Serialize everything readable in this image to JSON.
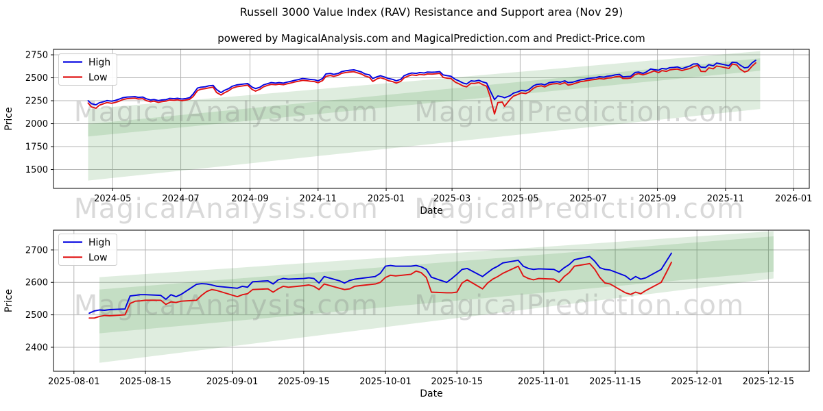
{
  "figure": {
    "title": "Russell 3000 Value Index (RAV) Resistance and Support area (Nov 29)",
    "subtitle": "powered by MagicalAnalysis.com and MagicalPrediction.com and Predict-Price.com",
    "watermark_left": "MagicalAnalysis.com",
    "watermark_right": "MagicalPrediction.com",
    "colors": {
      "high_line": "#0000e0",
      "low_line": "#e01111",
      "band_green": "rgba(56,142,56,0.16)",
      "grid": "#b4b4b4",
      "spine": "#000000",
      "watermark": "rgba(128,128,128,0.30)",
      "legend_border": "#cccccc"
    }
  },
  "chart_data": [
    {
      "type": "line",
      "name": "full-history-chart",
      "xlabel": "Date",
      "ylabel": "Price",
      "legend": [
        "High",
        "Low"
      ],
      "legend_position": "upper left",
      "grid": true,
      "x_domain": [
        "2024-03-09",
        "2026-01-15"
      ],
      "y_domain": [
        1295,
        2810
      ],
      "y_ticks": [
        1500,
        1750,
        2000,
        2250,
        2500,
        2750
      ],
      "x_ticks": [
        {
          "date": "2024-05-01",
          "label": "2024-05"
        },
        {
          "date": "2024-07-01",
          "label": "2024-07"
        },
        {
          "date": "2024-09-01",
          "label": "2024-09"
        },
        {
          "date": "2024-11-01",
          "label": "2024-11"
        },
        {
          "date": "2025-01-01",
          "label": "2025-01"
        },
        {
          "date": "2025-03-01",
          "label": "2025-03"
        },
        {
          "date": "2025-05-01",
          "label": "2025-05"
        },
        {
          "date": "2025-07-01",
          "label": "2025-07"
        },
        {
          "date": "2025-09-01",
          "label": "2025-09"
        },
        {
          "date": "2025-11-01",
          "label": "2025-11"
        },
        {
          "date": "2026-01-01",
          "label": "2026-01"
        }
      ],
      "bands": [
        {
          "name": "support-area",
          "x": [
            "2024-04-09",
            "2025-12-02"
          ],
          "y_bottom": [
            1380,
            2160
          ],
          "y_top": [
            1995,
            2712
          ]
        },
        {
          "name": "resistance-area",
          "x": [
            "2024-04-09",
            "2025-12-02"
          ],
          "y_bottom": [
            1860,
            2577
          ],
          "y_top": [
            2160,
            2790
          ]
        }
      ],
      "dates": [
        "2024-04-09",
        "2024-04-12",
        "2024-04-16",
        "2024-04-19",
        "2024-04-23",
        "2024-04-26",
        "2024-04-30",
        "2024-05-03",
        "2024-05-07",
        "2024-05-10",
        "2024-05-14",
        "2024-05-17",
        "2024-05-21",
        "2024-05-24",
        "2024-05-28",
        "2024-05-31",
        "2024-06-04",
        "2024-06-07",
        "2024-06-11",
        "2024-06-14",
        "2024-06-18",
        "2024-06-21",
        "2024-06-25",
        "2024-06-28",
        "2024-07-02",
        "2024-07-05",
        "2024-07-09",
        "2024-07-12",
        "2024-07-16",
        "2024-07-19",
        "2024-07-23",
        "2024-07-26",
        "2024-07-30",
        "2024-08-02",
        "2024-08-06",
        "2024-08-09",
        "2024-08-13",
        "2024-08-16",
        "2024-08-20",
        "2024-08-23",
        "2024-08-27",
        "2024-08-30",
        "2024-09-03",
        "2024-09-06",
        "2024-09-10",
        "2024-09-13",
        "2024-09-17",
        "2024-09-20",
        "2024-09-24",
        "2024-09-27",
        "2024-10-01",
        "2024-10-04",
        "2024-10-08",
        "2024-10-11",
        "2024-10-15",
        "2024-10-18",
        "2024-10-22",
        "2024-10-25",
        "2024-10-29",
        "2024-11-01",
        "2024-11-05",
        "2024-11-08",
        "2024-11-12",
        "2024-11-15",
        "2024-11-19",
        "2024-11-22",
        "2024-11-26",
        "2024-11-29",
        "2024-12-03",
        "2024-12-06",
        "2024-12-10",
        "2024-12-13",
        "2024-12-17",
        "2024-12-20",
        "2024-12-24",
        "2024-12-27",
        "2024-12-31",
        "2025-01-03",
        "2025-01-07",
        "2025-01-10",
        "2025-01-14",
        "2025-01-17",
        "2025-01-21",
        "2025-01-24",
        "2025-01-28",
        "2025-01-31",
        "2025-02-04",
        "2025-02-07",
        "2025-02-11",
        "2025-02-14",
        "2025-02-18",
        "2025-02-21",
        "2025-02-25",
        "2025-02-28",
        "2025-03-04",
        "2025-03-07",
        "2025-03-11",
        "2025-03-14",
        "2025-03-18",
        "2025-03-21",
        "2025-03-25",
        "2025-03-28",
        "2025-04-01",
        "2025-04-04",
        "2025-04-08",
        "2025-04-11",
        "2025-04-15",
        "2025-04-17",
        "2025-04-22",
        "2025-04-25",
        "2025-04-29",
        "2025-05-02",
        "2025-05-06",
        "2025-05-09",
        "2025-05-13",
        "2025-05-16",
        "2025-05-20",
        "2025-05-23",
        "2025-05-27",
        "2025-05-30",
        "2025-06-03",
        "2025-06-06",
        "2025-06-10",
        "2025-06-13",
        "2025-06-17",
        "2025-06-20",
        "2025-06-24",
        "2025-06-27",
        "2025-07-01",
        "2025-07-04",
        "2025-07-08",
        "2025-07-11",
        "2025-07-15",
        "2025-07-18",
        "2025-07-22",
        "2025-07-25",
        "2025-07-29",
        "2025-08-01",
        "2025-08-05",
        "2025-08-08",
        "2025-08-12",
        "2025-08-15",
        "2025-08-19",
        "2025-08-22",
        "2025-08-26",
        "2025-08-29",
        "2025-09-02",
        "2025-09-05",
        "2025-09-09",
        "2025-09-12",
        "2025-09-16",
        "2025-09-19",
        "2025-09-23",
        "2025-09-26",
        "2025-09-30",
        "2025-10-03",
        "2025-10-07",
        "2025-10-10",
        "2025-10-14",
        "2025-10-17",
        "2025-10-21",
        "2025-10-24",
        "2025-10-28",
        "2025-10-31",
        "2025-11-04",
        "2025-11-07",
        "2025-11-11",
        "2025-11-14",
        "2025-11-18",
        "2025-11-21",
        "2025-11-25",
        "2025-11-28"
      ],
      "high": [
        2250,
        2218,
        2205,
        2228,
        2240,
        2252,
        2245,
        2252,
        2268,
        2282,
        2290,
        2292,
        2294,
        2286,
        2290,
        2272,
        2258,
        2263,
        2252,
        2258,
        2262,
        2276,
        2272,
        2277,
        2268,
        2273,
        2283,
        2322,
        2388,
        2397,
        2402,
        2412,
        2417,
        2372,
        2338,
        2362,
        2383,
        2407,
        2422,
        2427,
        2432,
        2437,
        2398,
        2382,
        2397,
        2422,
        2437,
        2447,
        2442,
        2447,
        2442,
        2452,
        2462,
        2472,
        2482,
        2492,
        2487,
        2482,
        2477,
        2467,
        2492,
        2542,
        2547,
        2537,
        2547,
        2567,
        2577,
        2582,
        2587,
        2577,
        2562,
        2542,
        2532,
        2492,
        2512,
        2522,
        2507,
        2492,
        2482,
        2467,
        2482,
        2522,
        2542,
        2552,
        2547,
        2557,
        2552,
        2562,
        2560,
        2562,
        2567,
        2532,
        2522,
        2517,
        2482,
        2467,
        2442,
        2432,
        2467,
        2462,
        2472,
        2457,
        2442,
        2362,
        2262,
        2302,
        2292,
        2282,
        2305,
        2332,
        2347,
        2362,
        2357,
        2372,
        2412,
        2427,
        2432,
        2422,
        2447,
        2452,
        2457,
        2452,
        2467,
        2447,
        2452,
        2462,
        2477,
        2482,
        2492,
        2497,
        2502,
        2512,
        2507,
        2517,
        2522,
        2532,
        2537,
        2510,
        2514,
        2516,
        2558,
        2562,
        2548,
        2563,
        2596,
        2588,
        2582,
        2602,
        2595,
        2610,
        2614,
        2618,
        2598,
        2612,
        2628,
        2650,
        2652,
        2616,
        2612,
        2643,
        2630,
        2660,
        2650,
        2642,
        2632,
        2670,
        2665,
        2638,
        2608,
        2614,
        2665,
        2690
      ],
      "low": [
        2225,
        2182,
        2168,
        2200,
        2218,
        2230,
        2222,
        2230,
        2245,
        2262,
        2272,
        2275,
        2278,
        2268,
        2272,
        2252,
        2238,
        2245,
        2232,
        2240,
        2246,
        2258,
        2255,
        2260,
        2250,
        2256,
        2266,
        2295,
        2360,
        2375,
        2382,
        2390,
        2398,
        2340,
        2312,
        2335,
        2360,
        2385,
        2402,
        2408,
        2414,
        2420,
        2372,
        2355,
        2375,
        2400,
        2418,
        2428,
        2424,
        2430,
        2424,
        2434,
        2444,
        2454,
        2464,
        2472,
        2468,
        2462,
        2458,
        2446,
        2470,
        2515,
        2525,
        2515,
        2528,
        2548,
        2558,
        2562,
        2566,
        2555,
        2540,
        2520,
        2505,
        2460,
        2490,
        2500,
        2485,
        2468,
        2458,
        2442,
        2460,
        2498,
        2520,
        2532,
        2526,
        2536,
        2532,
        2542,
        2540,
        2543,
        2548,
        2505,
        2495,
        2492,
        2452,
        2435,
        2410,
        2402,
        2440,
        2438,
        2448,
        2428,
        2408,
        2300,
        2105,
        2230,
        2235,
        2190,
        2265,
        2300,
        2318,
        2335,
        2328,
        2345,
        2385,
        2405,
        2412,
        2400,
        2425,
        2432,
        2437,
        2430,
        2447,
        2420,
        2430,
        2442,
        2458,
        2462,
        2472,
        2478,
        2483,
        2492,
        2486,
        2496,
        2500,
        2510,
        2515,
        2492,
        2492,
        2497,
        2535,
        2545,
        2532,
        2542,
        2560,
        2575,
        2556,
        2578,
        2570,
        2585,
        2592,
        2595,
        2578,
        2590,
        2600,
        2620,
        2635,
        2570,
        2568,
        2608,
        2598,
        2628,
        2620,
        2612,
        2600,
        2650,
        2640,
        2595,
        2563,
        2575,
        2630,
        2662
      ]
    },
    {
      "type": "line",
      "name": "recent-detail-chart",
      "xlabel": "Date",
      "ylabel": "Price",
      "legend": [
        "High",
        "Low"
      ],
      "legend_position": "upper left",
      "grid": true,
      "x_domain": [
        "2025-07-28",
        "2025-12-23"
      ],
      "y_domain": [
        2326,
        2761
      ],
      "y_ticks": [
        2400,
        2500,
        2600,
        2700
      ],
      "x_ticks": [
        {
          "date": "2025-08-01",
          "label": "2025-08-01"
        },
        {
          "date": "2025-08-15",
          "label": "2025-08-15"
        },
        {
          "date": "2025-09-01",
          "label": "2025-09-01"
        },
        {
          "date": "2025-09-15",
          "label": "2025-09-15"
        },
        {
          "date": "2025-10-01",
          "label": "2025-10-01"
        },
        {
          "date": "2025-10-15",
          "label": "2025-10-15"
        },
        {
          "date": "2025-11-01",
          "label": "2025-11-01"
        },
        {
          "date": "2025-11-15",
          "label": "2025-11-15"
        },
        {
          "date": "2025-12-01",
          "label": "2025-12-01"
        },
        {
          "date": "2025-12-15",
          "label": "2025-12-15"
        }
      ],
      "bands": [
        {
          "name": "support-area",
          "x": [
            "2025-08-06",
            "2025-12-16"
          ],
          "y_bottom": [
            2352,
            2612
          ],
          "y_top": [
            2578,
            2742
          ]
        },
        {
          "name": "resistance-area",
          "x": [
            "2025-08-06",
            "2025-12-16"
          ],
          "y_bottom": [
            2443,
            2633
          ],
          "y_top": [
            2616,
            2758
          ]
        }
      ],
      "dates": [
        "2025-08-04",
        "2025-08-05",
        "2025-08-06",
        "2025-08-07",
        "2025-08-08",
        "2025-08-11",
        "2025-08-12",
        "2025-08-13",
        "2025-08-14",
        "2025-08-15",
        "2025-08-18",
        "2025-08-19",
        "2025-08-20",
        "2025-08-21",
        "2025-08-22",
        "2025-08-25",
        "2025-08-26",
        "2025-08-27",
        "2025-08-28",
        "2025-08-29",
        "2025-09-02",
        "2025-09-03",
        "2025-09-04",
        "2025-09-05",
        "2025-09-08",
        "2025-09-09",
        "2025-09-10",
        "2025-09-11",
        "2025-09-12",
        "2025-09-15",
        "2025-09-16",
        "2025-09-17",
        "2025-09-18",
        "2025-09-19",
        "2025-09-22",
        "2025-09-23",
        "2025-09-24",
        "2025-09-25",
        "2025-09-26",
        "2025-09-29",
        "2025-09-30",
        "2025-10-01",
        "2025-10-02",
        "2025-10-03",
        "2025-10-06",
        "2025-10-07",
        "2025-10-08",
        "2025-10-09",
        "2025-10-10",
        "2025-10-13",
        "2025-10-14",
        "2025-10-15",
        "2025-10-16",
        "2025-10-17",
        "2025-10-20",
        "2025-10-21",
        "2025-10-22",
        "2025-10-23",
        "2025-10-24",
        "2025-10-27",
        "2025-10-28",
        "2025-10-29",
        "2025-10-30",
        "2025-10-31",
        "2025-11-03",
        "2025-11-04",
        "2025-11-05",
        "2025-11-06",
        "2025-11-07",
        "2025-11-10",
        "2025-11-11",
        "2025-11-12",
        "2025-11-13",
        "2025-11-14",
        "2025-11-17",
        "2025-11-18",
        "2025-11-19",
        "2025-11-20",
        "2025-11-21",
        "2025-11-24",
        "2025-11-25",
        "2025-11-26"
      ],
      "high": [
        2505,
        2512,
        2515,
        2514,
        2516,
        2518,
        2558,
        2560,
        2562,
        2562,
        2560,
        2548,
        2562,
        2556,
        2563,
        2594,
        2596,
        2595,
        2592,
        2588,
        2582,
        2588,
        2585,
        2602,
        2605,
        2595,
        2608,
        2612,
        2610,
        2612,
        2614,
        2612,
        2598,
        2618,
        2605,
        2598,
        2606,
        2610,
        2612,
        2618,
        2628,
        2650,
        2652,
        2650,
        2650,
        2652,
        2648,
        2640,
        2616,
        2600,
        2612,
        2625,
        2640,
        2643,
        2618,
        2630,
        2642,
        2650,
        2660,
        2668,
        2650,
        2643,
        2640,
        2642,
        2640,
        2632,
        2645,
        2655,
        2670,
        2680,
        2665,
        2645,
        2640,
        2638,
        2620,
        2608,
        2618,
        2610,
        2614,
        2640,
        2665,
        2690
      ],
      "low": [
        2490,
        2490,
        2495,
        2498,
        2497,
        2500,
        2535,
        2542,
        2543,
        2545,
        2545,
        2532,
        2540,
        2538,
        2542,
        2545,
        2560,
        2572,
        2578,
        2575,
        2556,
        2562,
        2565,
        2578,
        2580,
        2570,
        2580,
        2588,
        2585,
        2590,
        2592,
        2588,
        2578,
        2595,
        2582,
        2578,
        2580,
        2588,
        2590,
        2595,
        2600,
        2615,
        2622,
        2620,
        2625,
        2635,
        2630,
        2615,
        2570,
        2568,
        2568,
        2570,
        2598,
        2608,
        2580,
        2598,
        2610,
        2618,
        2628,
        2650,
        2620,
        2612,
        2608,
        2612,
        2610,
        2600,
        2618,
        2630,
        2650,
        2658,
        2640,
        2615,
        2598,
        2595,
        2568,
        2563,
        2570,
        2565,
        2575,
        2600,
        2630,
        2662
      ]
    }
  ]
}
